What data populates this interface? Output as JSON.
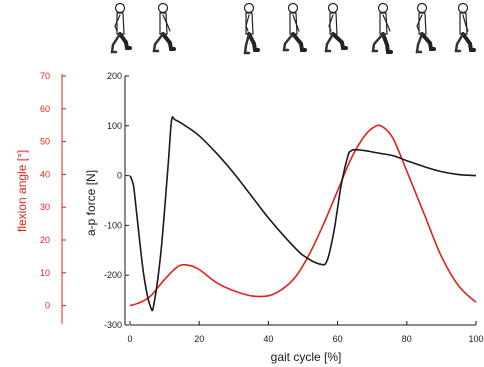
{
  "chart_data": {
    "type": "line",
    "xlabel": "gait cycle [%]",
    "xlim": [
      0,
      100
    ],
    "xticks": [
      "0",
      "20",
      "40",
      "60",
      "80",
      "100"
    ],
    "left_axis": {
      "label": "flexion angle [°]",
      "color": "#e0231b",
      "range": [
        -5,
        70
      ],
      "ticks": [
        "0",
        "10",
        "20",
        "30",
        "40",
        "50",
        "60",
        "70"
      ]
    },
    "right_axis": {
      "label": "a-p force [N]",
      "color": "#1a1a1a",
      "range": [
        -300,
        200
      ],
      "ticks": [
        "-300",
        "-200",
        "-100",
        "0",
        "100",
        "200"
      ]
    },
    "grid": false,
    "series": [
      {
        "axis": "flexion",
        "color": "#e0231b",
        "x": [
          0,
          3,
          6,
          10,
          14,
          17,
          20,
          25,
          30,
          35,
          40,
          44,
          48,
          52,
          56,
          60,
          64,
          68,
          71,
          73,
          76,
          80,
          85,
          90,
          95,
          100
        ],
        "y": [
          0,
          1,
          3,
          8,
          12,
          12.3,
          11,
          7,
          4.5,
          3,
          3,
          5,
          9,
          16,
          25,
          35,
          45,
          52,
          54.7,
          54.5,
          51,
          41,
          28,
          15,
          6,
          1
        ]
      },
      {
        "axis": "force",
        "color": "#1a1a1a",
        "x": [
          0,
          1,
          2,
          4,
          6,
          7,
          9,
          11,
          12,
          13,
          16,
          20,
          25,
          30,
          35,
          40,
          45,
          50,
          55,
          57,
          59,
          61,
          63,
          64,
          65,
          68,
          72,
          76,
          80,
          85,
          90,
          95,
          100
        ],
        "y": [
          0,
          -20,
          -80,
          -200,
          -265,
          -255,
          -150,
          20,
          110,
          112,
          100,
          80,
          45,
          5,
          -40,
          -85,
          -125,
          -160,
          -178,
          -170,
          -110,
          -20,
          40,
          50,
          52,
          50,
          45,
          40,
          30,
          18,
          8,
          2,
          0
        ]
      }
    ]
  },
  "walker_icons": [
    "walking-figure",
    "walking-figure",
    "walking-figure",
    "walking-figure",
    "walking-figure",
    "walking-figure",
    "walking-figure",
    "walking-figure"
  ]
}
